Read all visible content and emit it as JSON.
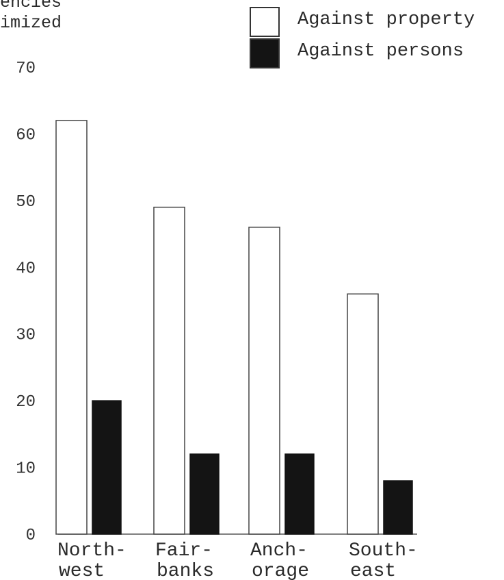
{
  "chart_data": {
    "type": "bar",
    "ylabel_lines": [
      "encies",
      "imized"
    ],
    "categories": [
      [
        "North-",
        "west"
      ],
      [
        "Fair-",
        "banks"
      ],
      [
        "Anch-",
        "orage"
      ],
      [
        "South-",
        "east"
      ]
    ],
    "series": [
      {
        "name": "Against property",
        "values": [
          62,
          49,
          46,
          36
        ],
        "fill": "#ffffff"
      },
      {
        "name": "Against persons",
        "values": [
          20,
          12,
          12,
          8
        ],
        "fill": "#141414"
      }
    ],
    "ylim": [
      0,
      70
    ],
    "yticks": [
      0,
      10,
      20,
      30,
      40,
      50,
      60,
      70
    ],
    "grid": false,
    "legend_position": "top-right"
  }
}
